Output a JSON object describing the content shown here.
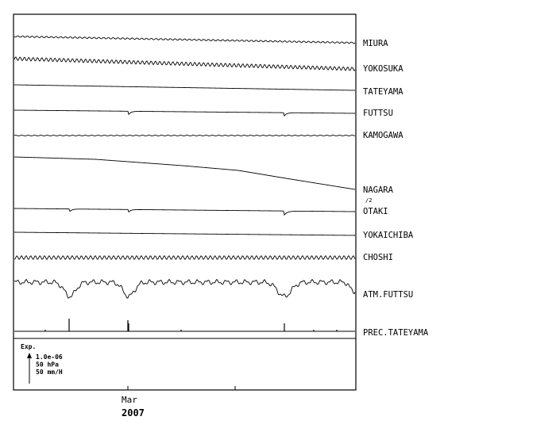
{
  "chart_data": {
    "type": "line",
    "stations": [
      {
        "name": "MIURA",
        "note": ""
      },
      {
        "name": "YOKOSUKA",
        "note": ""
      },
      {
        "name": "TATEYAMA",
        "note": ""
      },
      {
        "name": "FUTTSU",
        "note": ""
      },
      {
        "name": "KAMOGAWA",
        "note": ""
      },
      {
        "name": "NAGARA",
        "note": "/2"
      },
      {
        "name": "OTAKI",
        "note": ""
      },
      {
        "name": "YOKAICHIBA",
        "note": ""
      },
      {
        "name": "CHOSHI",
        "note": ""
      },
      {
        "name": "ATM.FUTTSU",
        "note": ""
      },
      {
        "name": "PREC.TATEYAMA",
        "note": ""
      }
    ],
    "x_ticks": [
      {
        "label": "Mar",
        "sub": "2007"
      },
      {
        "label": "",
        "sub": ""
      }
    ],
    "scale": {
      "title": "Exp.",
      "lines": [
        "1.0e-06",
        "50 hPa",
        "50 mm/H"
      ]
    },
    "grid": false,
    "events": [
      "~5 days before Mar",
      "~Mar 1",
      "~Mar 15"
    ]
  }
}
